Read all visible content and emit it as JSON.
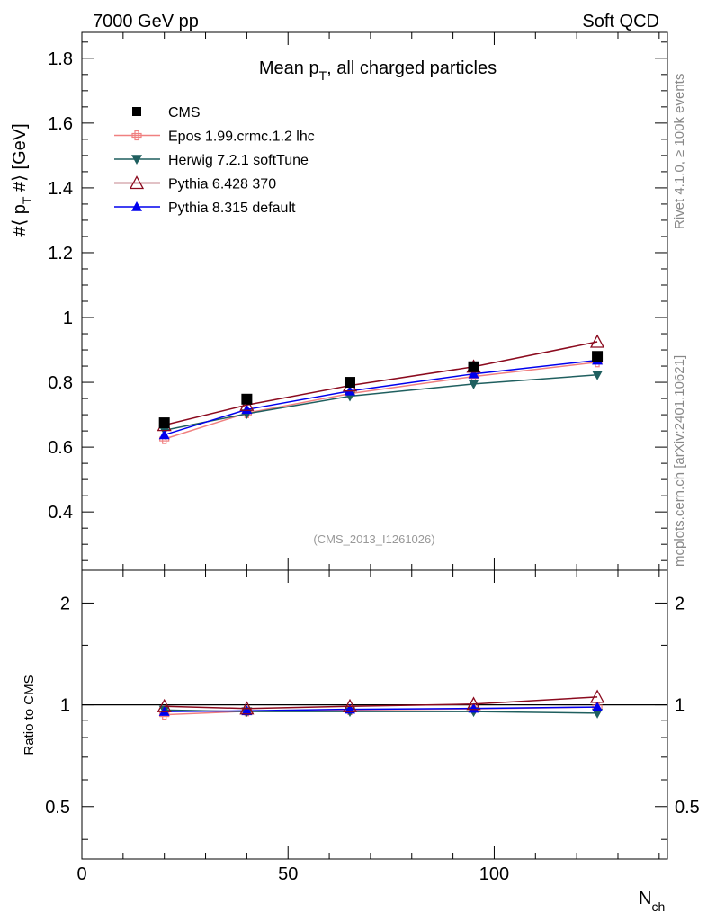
{
  "header": {
    "left": "7000 GeV pp",
    "right": "Soft QCD"
  },
  "side_text": {
    "rivet": "Rivet 4.1.0, ≥ 100k events",
    "mcplots": "mcplots.cern.ch [arXiv:2401.10621]"
  },
  "chart_data": {
    "type": "scatter",
    "title_main": "Mean p",
    "title_sub": "T",
    "title_rest": ", all charged particles",
    "analysis_label": "(CMS_2013_I1261026)",
    "ylabel_parts": [
      "#⟨ p",
      "T",
      " #⟩ [GeV]"
    ],
    "ratio_ylabel": "Ratio to CMS",
    "xlabel_main": "N",
    "xlabel_sub": "ch",
    "xlim": [
      0,
      142
    ],
    "ylim": [
      0.22,
      1.88
    ],
    "ratio_ylim": [
      0.35,
      2.5
    ],
    "x_ticks": [
      0,
      50,
      100
    ],
    "x_tick_labels": [
      "0",
      "50",
      "100"
    ],
    "y_ticks": [
      0.4,
      0.6,
      0.8,
      1.0,
      1.2,
      1.4,
      1.6,
      1.8
    ],
    "y_tick_labels": [
      "0.4",
      "0.6",
      "0.8",
      "1",
      "1.2",
      "1.4",
      "1.6",
      "1.8"
    ],
    "ratio_ticks": [
      0.5,
      1,
      2
    ],
    "ratio_tick_labels": [
      "0.5",
      "1",
      "2"
    ],
    "x": [
      20,
      40,
      65,
      95,
      125
    ],
    "series": [
      {
        "name": "CMS",
        "color": "#000000",
        "marker": "square",
        "line": false,
        "values": [
          0.675,
          0.748,
          0.8,
          0.848,
          0.88
        ],
        "ratio": [
          1.0,
          1.0,
          1.0,
          1.0,
          1.0
        ]
      },
      {
        "name": "Epos 1.99.crmc.1.2 lhc",
        "color": "#f08080",
        "marker": "cross",
        "line": true,
        "values": [
          0.625,
          0.705,
          0.765,
          0.818,
          0.862
        ],
        "ratio": [
          0.935,
          0.957,
          0.965,
          0.973,
          0.985
        ]
      },
      {
        "name": "Herwig 7.2.1 softTune",
        "color": "#1f5f5f",
        "marker": "triangle-down",
        "line": true,
        "values": [
          0.652,
          0.703,
          0.757,
          0.795,
          0.823
        ],
        "ratio": [
          0.965,
          0.955,
          0.955,
          0.955,
          0.945
        ]
      },
      {
        "name": "Pythia 6.428 370",
        "color": "#8b0a1e",
        "marker": "triangle-open",
        "line": true,
        "values": [
          0.668,
          0.73,
          0.79,
          0.848,
          0.925
        ],
        "ratio": [
          0.99,
          0.975,
          0.99,
          1.005,
          1.055
        ]
      },
      {
        "name": "Pythia 8.315 default",
        "color": "#0000ee",
        "marker": "triangle-up",
        "line": true,
        "values": [
          0.638,
          0.716,
          0.773,
          0.826,
          0.868
        ],
        "ratio": [
          0.955,
          0.96,
          0.97,
          0.976,
          0.985
        ]
      }
    ]
  }
}
